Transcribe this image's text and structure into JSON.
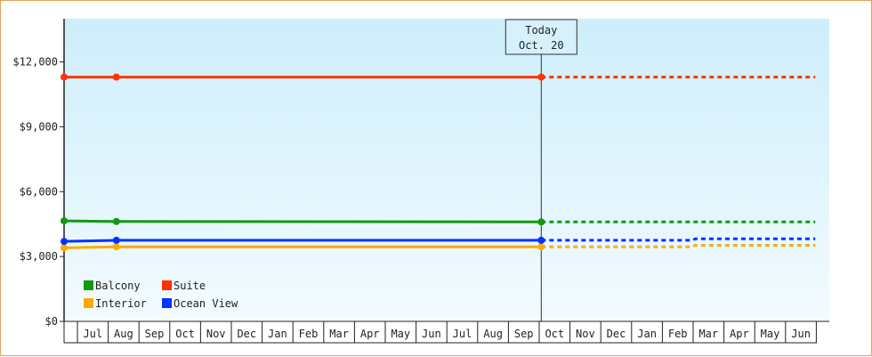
{
  "chart_data": {
    "type": "line",
    "y_ticks": [
      "$0",
      "$3,000",
      "$6,000",
      "$9,000",
      "$12,000"
    ],
    "ylim": [
      0,
      14000
    ],
    "x_months": [
      "Jul",
      "Aug",
      "Sep",
      "Oct",
      "Nov",
      "Dec",
      "Jan",
      "Feb",
      "Mar",
      "Apr",
      "May",
      "Jun",
      "Jul",
      "Aug",
      "Sep",
      "Oct",
      "Nov",
      "Dec",
      "Jan",
      "Feb",
      "Mar",
      "Apr",
      "May",
      "Jun"
    ],
    "today": {
      "title": "Today",
      "date": "Oct. 20",
      "month_index": 15.5
    },
    "series": [
      {
        "name": "Suite",
        "color": "#ff3300",
        "points": [
          [
            0,
            11300
          ],
          [
            1.7,
            11300
          ],
          [
            15.5,
            11300
          ]
        ],
        "projection": [
          [
            15.5,
            11300
          ],
          [
            24.4,
            11300
          ]
        ]
      },
      {
        "name": "Balcony",
        "color": "#119911",
        "points": [
          [
            0,
            4650
          ],
          [
            1.7,
            4620
          ],
          [
            15.5,
            4600
          ]
        ],
        "projection": [
          [
            15.5,
            4600
          ],
          [
            24.4,
            4600
          ]
        ]
      },
      {
        "name": "Ocean View",
        "color": "#0033ff",
        "points": [
          [
            0,
            3700
          ],
          [
            1.7,
            3750
          ],
          [
            15.5,
            3750
          ]
        ],
        "projection": [
          [
            15.5,
            3750
          ],
          [
            20.4,
            3750
          ],
          [
            20.5,
            3820
          ],
          [
            24.4,
            3820
          ]
        ]
      },
      {
        "name": "Interior",
        "color": "#ffaa00",
        "points": [
          [
            0,
            3400
          ],
          [
            1.7,
            3450
          ],
          [
            15.5,
            3450
          ]
        ],
        "projection": [
          [
            15.5,
            3450
          ],
          [
            20.4,
            3450
          ],
          [
            20.5,
            3520
          ],
          [
            24.4,
            3520
          ]
        ]
      }
    ],
    "legend": [
      {
        "label": "Balcony",
        "color": "#119911"
      },
      {
        "label": "Suite",
        "color": "#ff3300"
      },
      {
        "label": "Interior",
        "color": "#ffaa00"
      },
      {
        "label": "Ocean View",
        "color": "#0033ff"
      }
    ],
    "legend_position": "bottom-left",
    "background_gradient": [
      "#cdeefb",
      "#f3fbff"
    ]
  }
}
